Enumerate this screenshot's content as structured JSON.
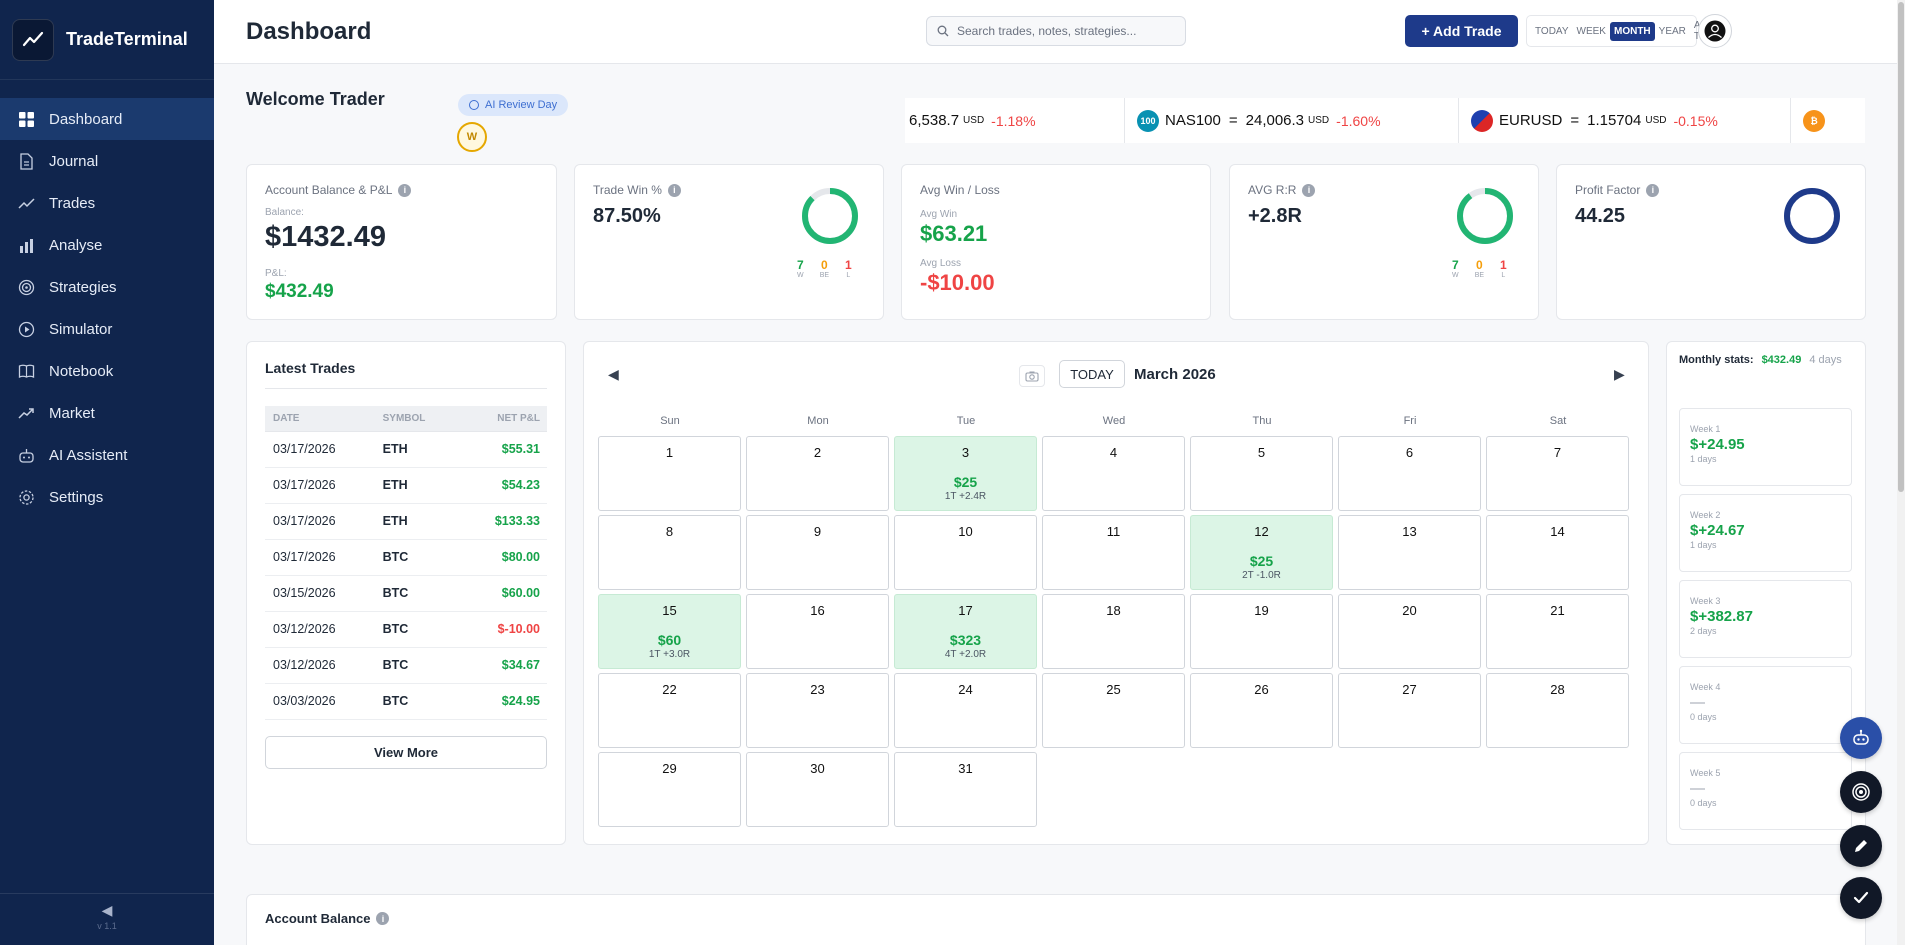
{
  "app": {
    "name": "TradeTerminal",
    "version": "v 1.1"
  },
  "sidebar": {
    "items": [
      {
        "label": "Dashboard",
        "icon": "grid-icon",
        "active": true
      },
      {
        "label": "Journal",
        "icon": "document-icon"
      },
      {
        "label": "Trades",
        "icon": "chart-line-icon"
      },
      {
        "label": "Analyse",
        "icon": "bar-chart-icon"
      },
      {
        "label": "Strategies",
        "icon": "target-icon"
      },
      {
        "label": "Simulator",
        "icon": "play-icon"
      },
      {
        "label": "Notebook",
        "icon": "book-icon"
      },
      {
        "label": "Market",
        "icon": "trend-icon"
      },
      {
        "label": "AI Assistent",
        "icon": "robot-icon"
      },
      {
        "label": "Settings",
        "icon": "gear-icon"
      }
    ],
    "collapse_glyph": "◀"
  },
  "header": {
    "title": "Dashboard",
    "search_placeholder": "Search trades, notes, strategies...",
    "add_label": "+ Add Trade",
    "ranges": [
      "TODAY",
      "WEEK",
      "MONTH",
      "YEAR",
      "ALL TIME"
    ],
    "selected_range": "MONTH"
  },
  "welcome": {
    "text": "Welcome Trader",
    "review_label": "AI Review Day",
    "badge": "W"
  },
  "ticker": [
    {
      "symbol": "",
      "price": "6,538.7",
      "currency": "USD",
      "change": "-1.18%"
    },
    {
      "symbol": "NAS100",
      "icon_label": "100",
      "price": "24,006.3",
      "currency": "USD",
      "change": "-1.60%"
    },
    {
      "symbol": "EURUSD",
      "price": "1.15704",
      "currency": "USD",
      "change": "-0.15%"
    }
  ],
  "kpi": {
    "balance": {
      "title": "Account Balance & P&L",
      "balance_label": "Balance:",
      "balance": "$1432.49",
      "pnl_label": "P&L:",
      "pnl": "$432.49"
    },
    "winrate": {
      "title": "Trade Win %",
      "value": "87.50%",
      "w": "7",
      "be": "0",
      "l": "1",
      "w_label": "W",
      "be_label": "BE",
      "l_label": "L",
      "ring_fraction": 0.875
    },
    "avg": {
      "title": "Avg Win / Loss",
      "win_label": "Avg Win",
      "win": "$63.21",
      "loss_label": "Avg Loss",
      "loss": "-$10.00"
    },
    "rr": {
      "title": "AVG R:R",
      "value": "+2.8R",
      "w": "7",
      "be": "0",
      "l": "1",
      "w_label": "W",
      "be_label": "BE",
      "l_label": "L",
      "ring_fraction": 0.9
    },
    "pf": {
      "title": "Profit Factor",
      "value": "44.25",
      "ring_fraction": 1.0
    }
  },
  "latest_trades": {
    "title": "Latest Trades",
    "columns": [
      "DATE",
      "SYMBOL",
      "NET P&L"
    ],
    "rows": [
      {
        "date": "03/17/2026",
        "symbol": "ETH",
        "pnl": "$55.31",
        "positive": true
      },
      {
        "date": "03/17/2026",
        "symbol": "ETH",
        "pnl": "$54.23",
        "positive": true
      },
      {
        "date": "03/17/2026",
        "symbol": "ETH",
        "pnl": "$133.33",
        "positive": true
      },
      {
        "date": "03/17/2026",
        "symbol": "BTC",
        "pnl": "$80.00",
        "positive": true
      },
      {
        "date": "03/15/2026",
        "symbol": "BTC",
        "pnl": "$60.00",
        "positive": true
      },
      {
        "date": "03/12/2026",
        "symbol": "BTC",
        "pnl": "$-10.00",
        "positive": false
      },
      {
        "date": "03/12/2026",
        "symbol": "BTC",
        "pnl": "$34.67",
        "positive": true
      },
      {
        "date": "03/03/2026",
        "symbol": "BTC",
        "pnl": "$24.95",
        "positive": true
      }
    ],
    "view_more": "View More"
  },
  "calendar": {
    "today_label": "TODAY",
    "month_label": "March 2026",
    "prev_glyph": "◀",
    "next_glyph": "▶",
    "weekdays": [
      "Sun",
      "Mon",
      "Tue",
      "Wed",
      "Thu",
      "Fri",
      "Sat"
    ],
    "start_weekday": 0,
    "days_in_month": 31,
    "entries": {
      "3": {
        "pnl": "$25",
        "sub": "1T +2.4R"
      },
      "12": {
        "pnl": "$25",
        "sub": "2T -1.0R"
      },
      "15": {
        "pnl": "$60",
        "sub": "1T +3.0R"
      },
      "17": {
        "pnl": "$323",
        "sub": "4T +2.0R"
      }
    }
  },
  "monthly": {
    "label": "Monthly stats:",
    "value": "$432.49",
    "days": "4 days",
    "weeks": [
      {
        "label": "Week 1",
        "value": "$+24.95",
        "days": "1 days"
      },
      {
        "label": "Week 2",
        "value": "$+24.67",
        "days": "1 days"
      },
      {
        "label": "Week 3",
        "value": "$+382.87",
        "days": "2 days"
      },
      {
        "label": "Week 4",
        "value": "—",
        "days": "0 days"
      },
      {
        "label": "Week 5",
        "value": "—",
        "days": "0 days"
      }
    ]
  },
  "account_balance": {
    "title": "Account Balance"
  },
  "colors": {
    "navy": "#10254d",
    "accent": "#1e3a8a",
    "green": "#16a34a",
    "red": "#ef4444",
    "ring_green": "#22b573"
  }
}
